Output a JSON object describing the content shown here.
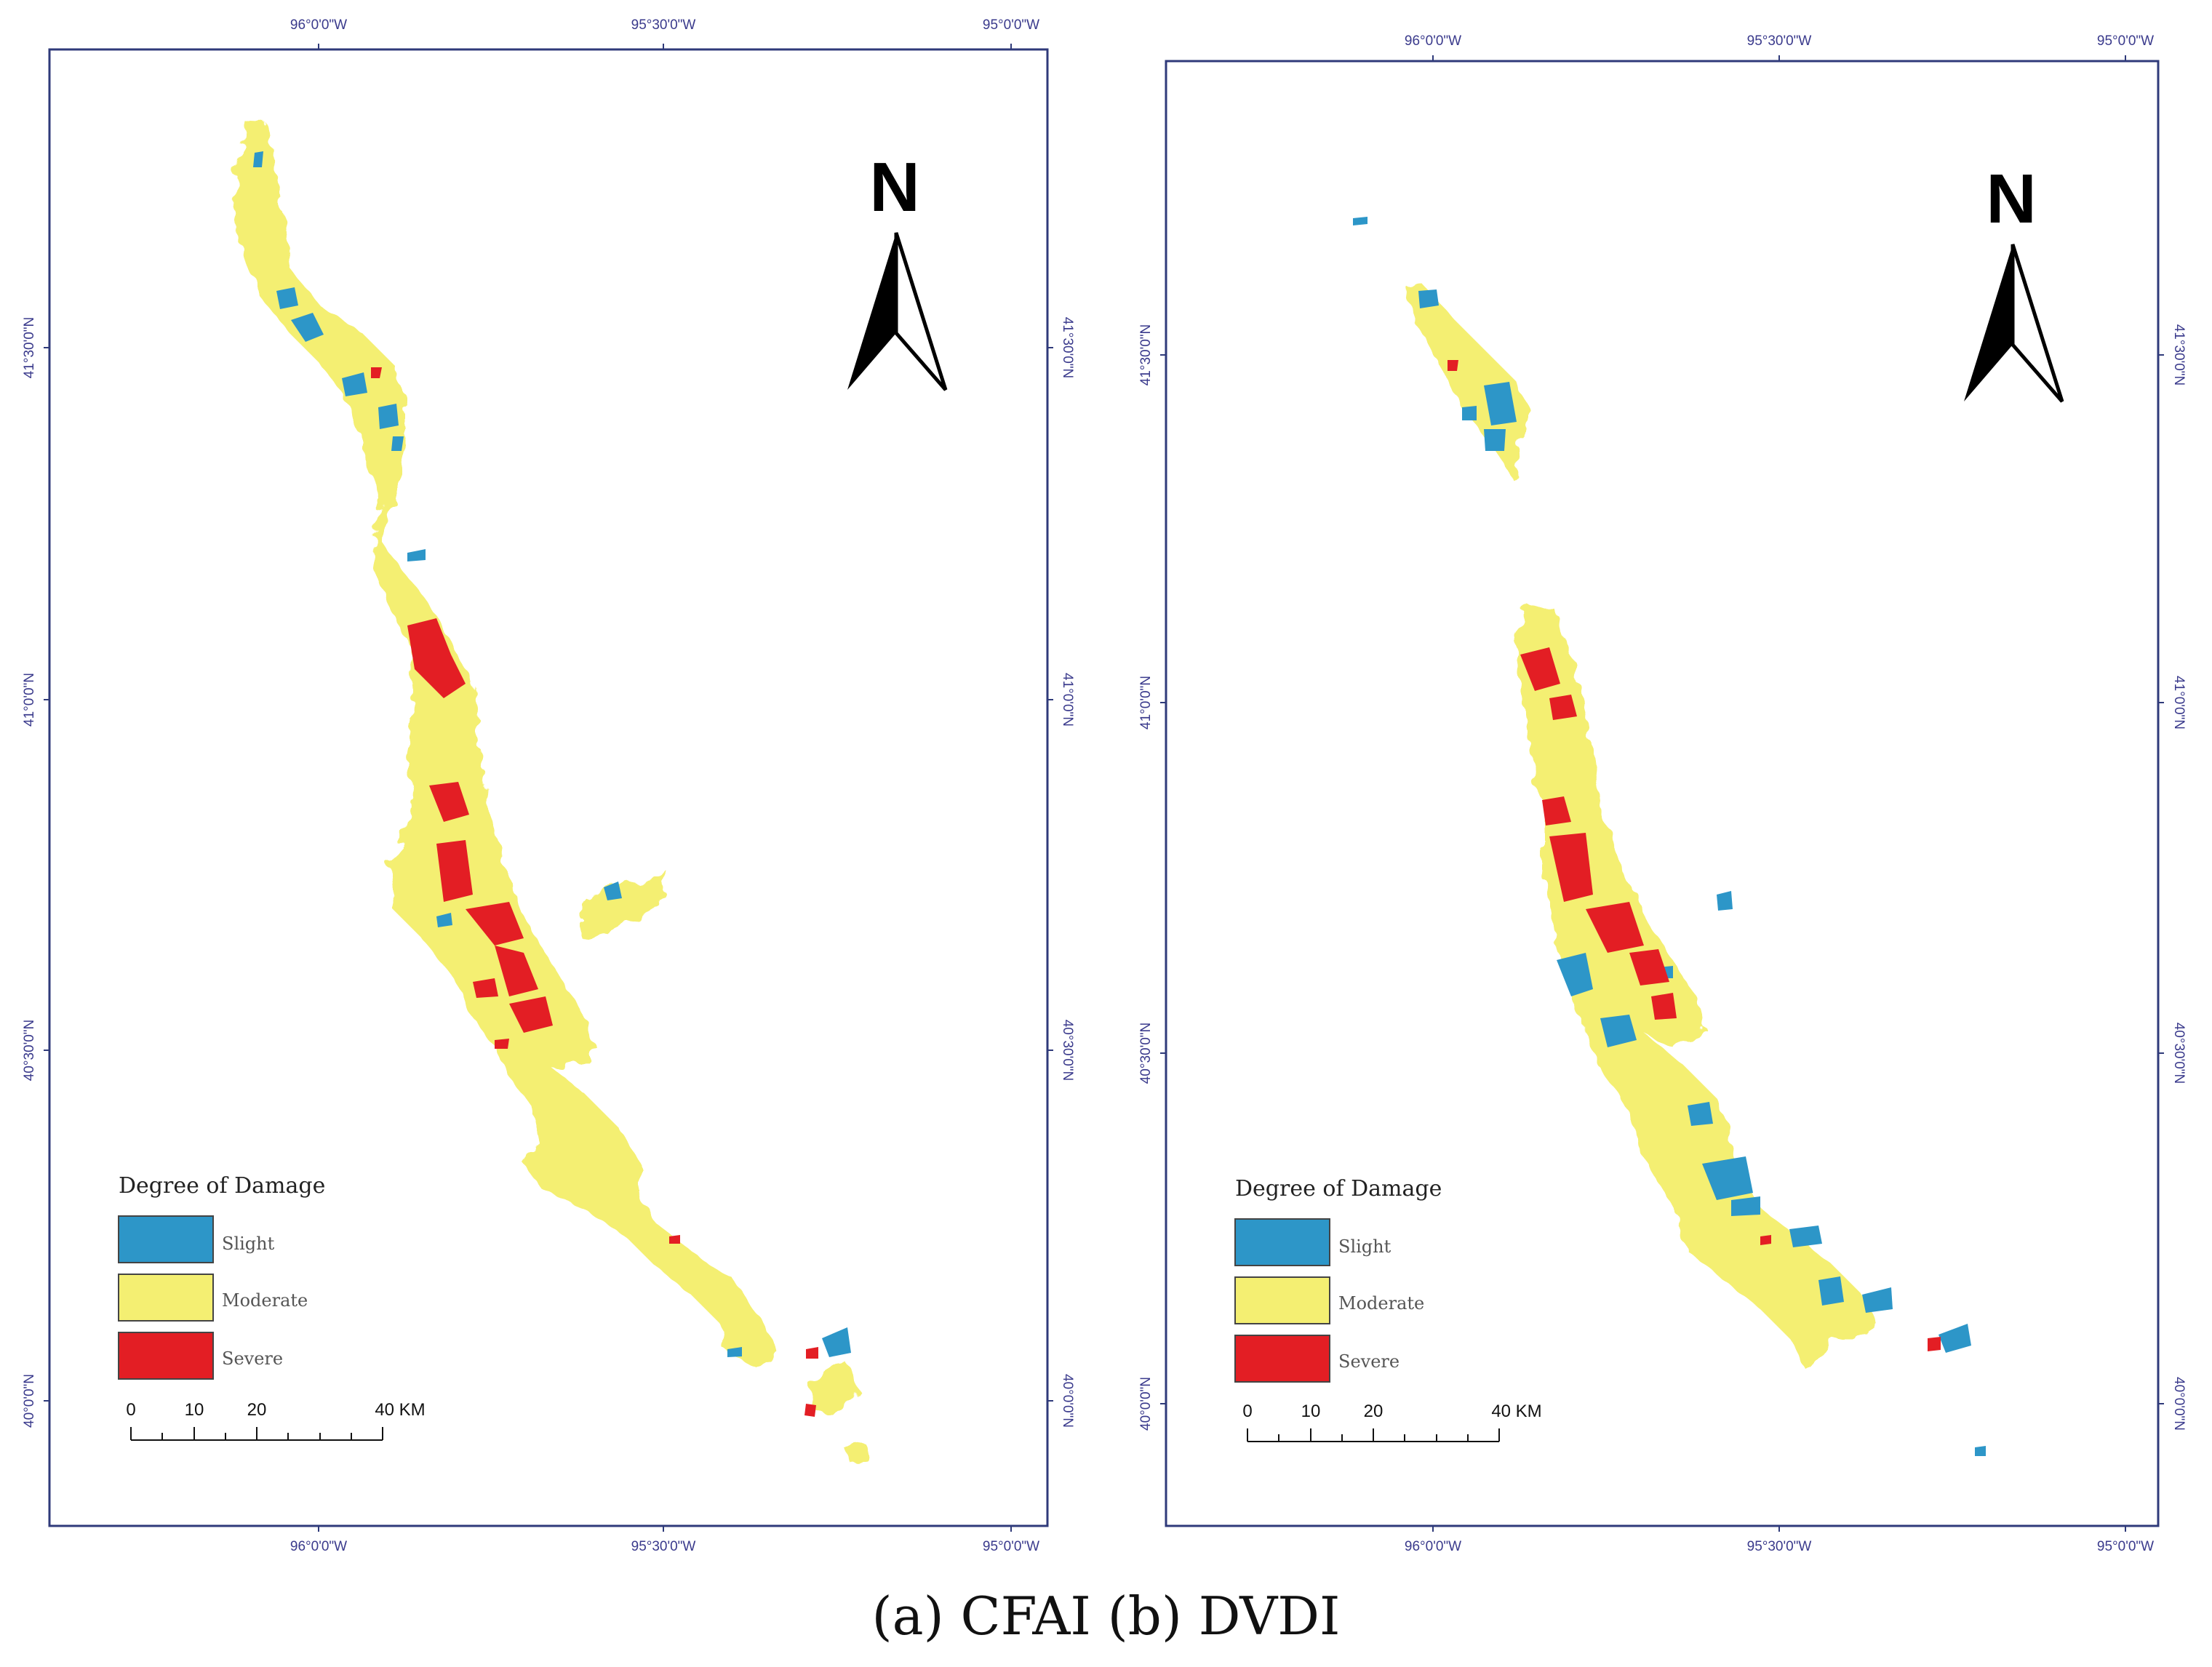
{
  "caption": "(a) CFAI (b) DVDI",
  "colors": {
    "frame": "#2f3a7a",
    "slight": "#2d96c8",
    "moderate": "#f4ef72",
    "severe": "#e31e24",
    "legend_border": "#444444"
  },
  "panels": [
    {
      "id": "panel-a",
      "lon_labels": [
        "96°0'0\"W",
        "95°30'0\"W",
        "95°0'0\"W"
      ],
      "lat_labels": [
        "41°30'0\"N",
        "41°0'0\"N",
        "40°30'0\"N",
        "40°0'0\"N"
      ],
      "north_arrow": "N",
      "legend": {
        "title": "Degree of Damage",
        "items": [
          {
            "label": "Slight",
            "class": "slight"
          },
          {
            "label": "Moderate",
            "class": "moderate"
          },
          {
            "label": "Severe",
            "class": "severe"
          }
        ]
      },
      "scale_bar": {
        "ticks": [
          "0",
          "10",
          "20",
          "40 KM"
        ]
      }
    },
    {
      "id": "panel-b",
      "lon_labels": [
        "96°0'0\"W",
        "95°30'0\"W",
        "95°0'0\"W"
      ],
      "lat_labels": [
        "41°30'0\"N",
        "41°0'0\"N",
        "40°30'0\"N",
        "40°0'0\"N"
      ],
      "north_arrow": "N",
      "legend": {
        "title": "Degree of Damage",
        "items": [
          {
            "label": "Slight",
            "class": "slight"
          },
          {
            "label": "Moderate",
            "class": "moderate"
          },
          {
            "label": "Severe",
            "class": "severe"
          }
        ]
      },
      "scale_bar": {
        "ticks": [
          "0",
          "10",
          "20",
          "40 KM"
        ]
      }
    }
  ]
}
